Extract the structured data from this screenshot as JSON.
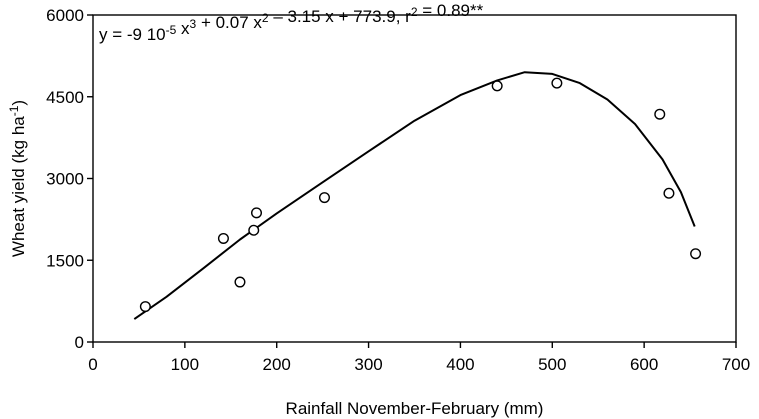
{
  "chart_data": {
    "type": "scatter",
    "xlabel": "Rainfall November-February (mm)",
    "ylabel_parts": [
      "Wheat yield (kg ha",
      "-1",
      ")"
    ],
    "equation_parts": [
      {
        "t": "y = -9 10",
        "sup": false
      },
      {
        "t": "-5",
        "sup": true
      },
      {
        "t": " x",
        "sup": false
      },
      {
        "t": "3",
        "sup": true
      },
      {
        "t": " + 0.07 x",
        "sup": false
      },
      {
        "t": "2",
        "sup": true
      },
      {
        "t": " – 3.15 x + 773.9, r",
        "sup": false
      },
      {
        "t": "2",
        "sup": true
      },
      {
        "t": " = 0.89**",
        "sup": false
      }
    ],
    "xlim": [
      0,
      700
    ],
    "ylim": [
      0,
      6000
    ],
    "xticks": [
      0,
      100,
      200,
      300,
      400,
      500,
      600,
      700
    ],
    "yticks": [
      0,
      1500,
      3000,
      4500,
      6000
    ],
    "grid": false,
    "points": [
      {
        "x": 57,
        "y": 650
      },
      {
        "x": 142,
        "y": 1900
      },
      {
        "x": 160,
        "y": 1100
      },
      {
        "x": 175,
        "y": 2050
      },
      {
        "x": 178,
        "y": 2370
      },
      {
        "x": 252,
        "y": 2650
      },
      {
        "x": 440,
        "y": 4700
      },
      {
        "x": 505,
        "y": 4750
      },
      {
        "x": 617,
        "y": 4180
      },
      {
        "x": 627,
        "y": 2730
      },
      {
        "x": 656,
        "y": 1620
      }
    ],
    "fit_curve": {
      "x": [
        45,
        80,
        120,
        160,
        200,
        250,
        300,
        350,
        400,
        440,
        470,
        500,
        530,
        560,
        590,
        620,
        640,
        655
      ],
      "y": [
        420,
        830,
        1350,
        1880,
        2360,
        2930,
        3500,
        4060,
        4530,
        4800,
        4950,
        4920,
        4750,
        4450,
        4000,
        3350,
        2750,
        2120
      ]
    }
  }
}
